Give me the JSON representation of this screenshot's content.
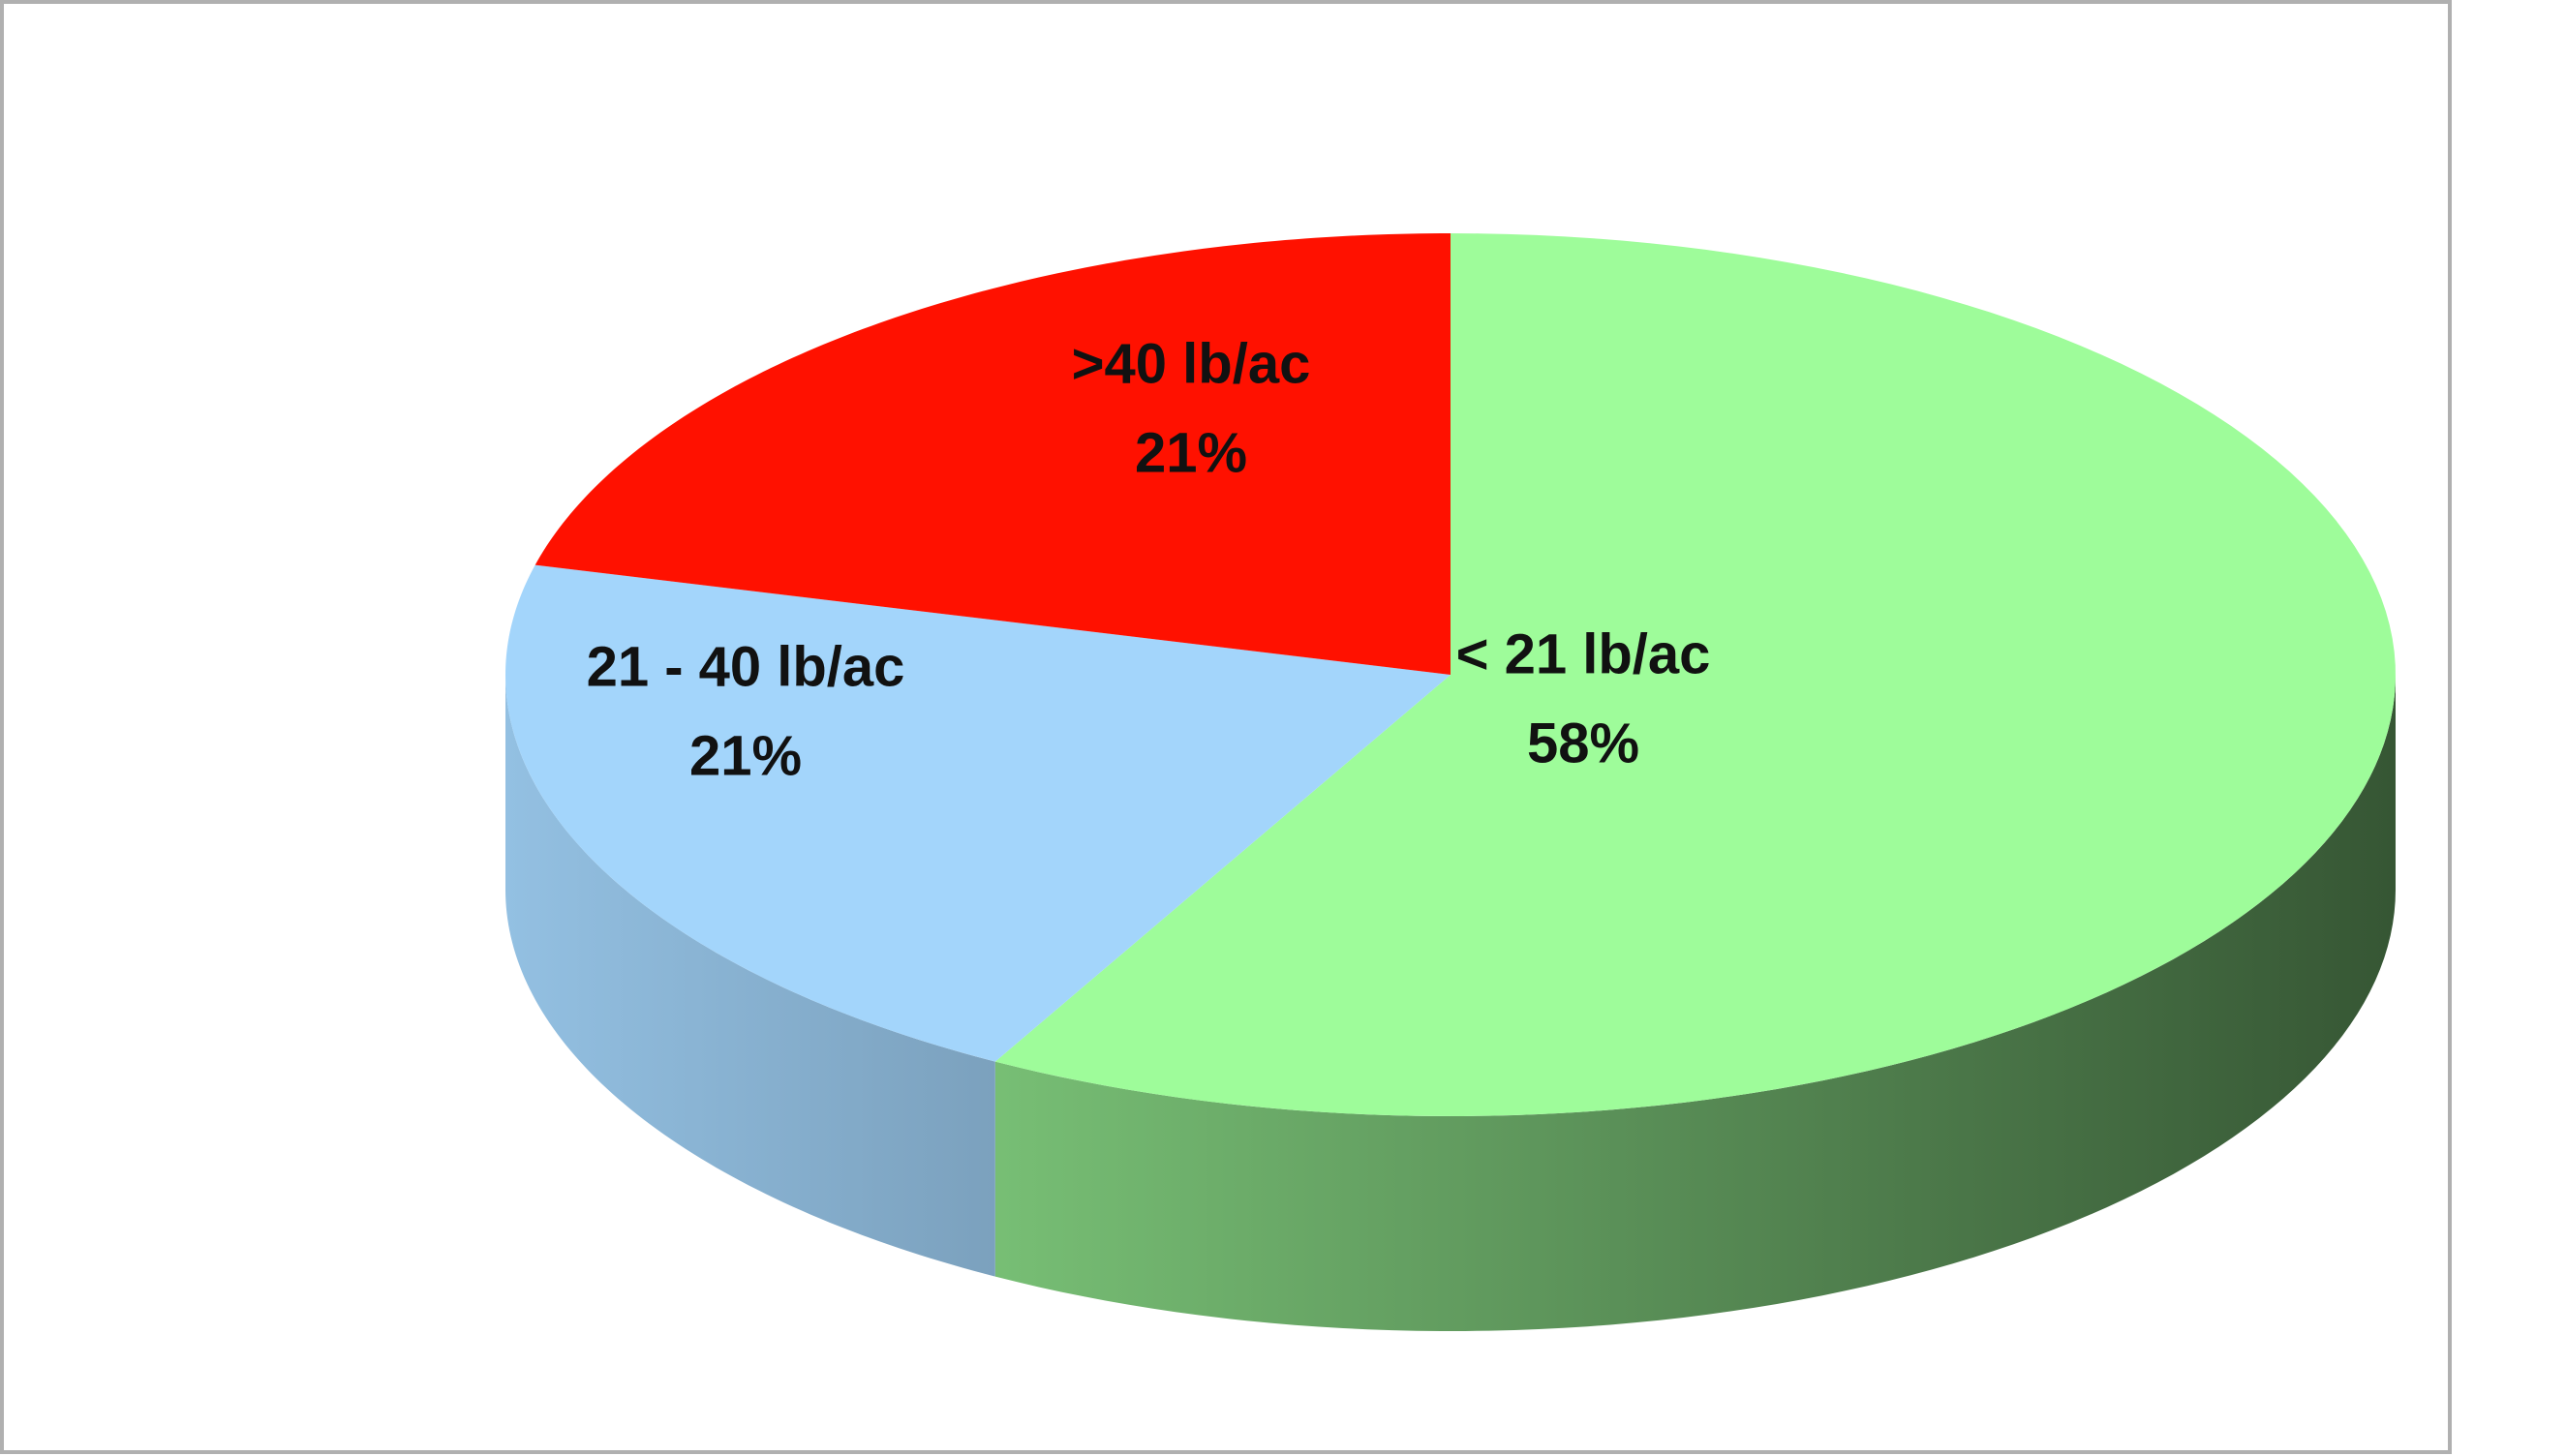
{
  "chart_data": {
    "type": "pie",
    "categories": [
      "< 21 lb/ac",
      "21 - 40 lb/ac",
      ">40 lb/ac"
    ],
    "values": [
      58,
      21,
      21
    ],
    "value_labels": [
      "58%",
      "21%",
      "21%"
    ],
    "colors": [
      "#9efc9a",
      "#a3d5fb",
      "#ff1100"
    ]
  }
}
